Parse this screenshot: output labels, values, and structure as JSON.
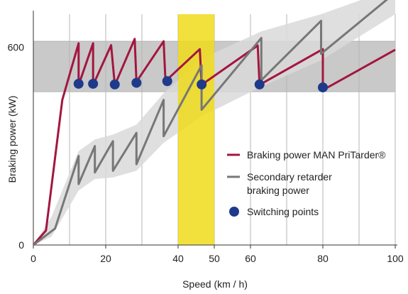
{
  "chart_data": {
    "type": "line",
    "xlabel": "Speed (km / h)",
    "ylabel": "Braking power (kW)",
    "xlim": [
      0,
      100
    ],
    "ylim": [
      0,
      700
    ],
    "x_ticks": [
      0,
      20,
      40,
      50,
      60,
      80,
      100
    ],
    "x_tick_labels": [
      "0",
      "20",
      "40",
      "50",
      "60",
      "80",
      "100"
    ],
    "y_ticks": [
      0,
      600
    ],
    "y_tick_labels": [
      "0",
      "600"
    ],
    "vertical_gridlines_at": [
      10,
      20,
      30,
      40,
      50,
      60,
      70,
      80,
      90,
      100
    ],
    "horizontal_band": {
      "y_from": 465,
      "y_to": 618,
      "color": "#c9c9c9"
    },
    "highlight_band": {
      "x_from": 40,
      "x_to": 50,
      "color": "#f0dc1a"
    },
    "series": [
      {
        "name": "Braking power MAN PriTarder®",
        "color": "#a3163f",
        "points": [
          [
            0,
            0
          ],
          [
            3.5,
            44
          ],
          [
            8,
            440
          ],
          [
            12.5,
            612
          ],
          [
            12.5,
            485
          ],
          [
            16.5,
            612
          ],
          [
            16.5,
            485
          ],
          [
            21.5,
            606
          ],
          [
            22.5,
            485
          ],
          [
            28,
            625
          ],
          [
            28.5,
            495
          ],
          [
            36,
            618
          ],
          [
            36.5,
            497
          ],
          [
            46,
            594
          ],
          [
            46.5,
            486
          ],
          [
            62,
            605
          ],
          [
            62.5,
            486
          ],
          [
            80,
            594
          ],
          [
            80,
            470
          ],
          [
            100,
            592
          ]
        ]
      },
      {
        "name": "Secondary retarder braking power",
        "color": "#777777",
        "points": [
          [
            0,
            0
          ],
          [
            6,
            50
          ],
          [
            12.5,
            270
          ],
          [
            12.5,
            185
          ],
          [
            17,
            300
          ],
          [
            17,
            220
          ],
          [
            22,
            315
          ],
          [
            22,
            225
          ],
          [
            28.5,
            340
          ],
          [
            28.5,
            245
          ],
          [
            36,
            440
          ],
          [
            36,
            330
          ],
          [
            46.5,
            545
          ],
          [
            46.5,
            410
          ],
          [
            63,
            628
          ],
          [
            63,
            500
          ],
          [
            79.5,
            680
          ],
          [
            79.5,
            580
          ],
          [
            100,
            765
          ]
        ]
      }
    ],
    "secondary_envelope": {
      "color": "#d9d9d9",
      "upper": [
        [
          0,
          0
        ],
        [
          5,
          85
        ],
        [
          12.5,
          285
        ],
        [
          17,
          320
        ],
        [
          22,
          335
        ],
        [
          28.5,
          365
        ],
        [
          36,
          460
        ],
        [
          46.5,
          565
        ],
        [
          63,
          648
        ],
        [
          79.5,
          700
        ],
        [
          100,
          780
        ]
      ],
      "lower": [
        [
          100,
          700
        ],
        [
          79.5,
          560
        ],
        [
          63,
          480
        ],
        [
          46.5,
          390
        ],
        [
          36,
          310
        ],
        [
          28.5,
          225
        ],
        [
          22,
          205
        ],
        [
          17,
          200
        ],
        [
          12.5,
          165
        ],
        [
          5,
          25
        ],
        [
          0,
          0
        ]
      ]
    },
    "switching_points": {
      "name": "Switching points",
      "color": "#1f3a8a",
      "points": [
        [
          12.5,
          489
        ],
        [
          16.5,
          489
        ],
        [
          22.5,
          487
        ],
        [
          28.5,
          492
        ],
        [
          37,
          497
        ],
        [
          46.5,
          487
        ],
        [
          62.5,
          487
        ],
        [
          80,
          478
        ]
      ]
    },
    "legend_position": "right",
    "legend": {
      "pritarder": "Braking power MAN PriTarder®",
      "secondary_line1": "Secondary retarder",
      "secondary_line2": "braking power",
      "switching": "Switching points"
    }
  }
}
